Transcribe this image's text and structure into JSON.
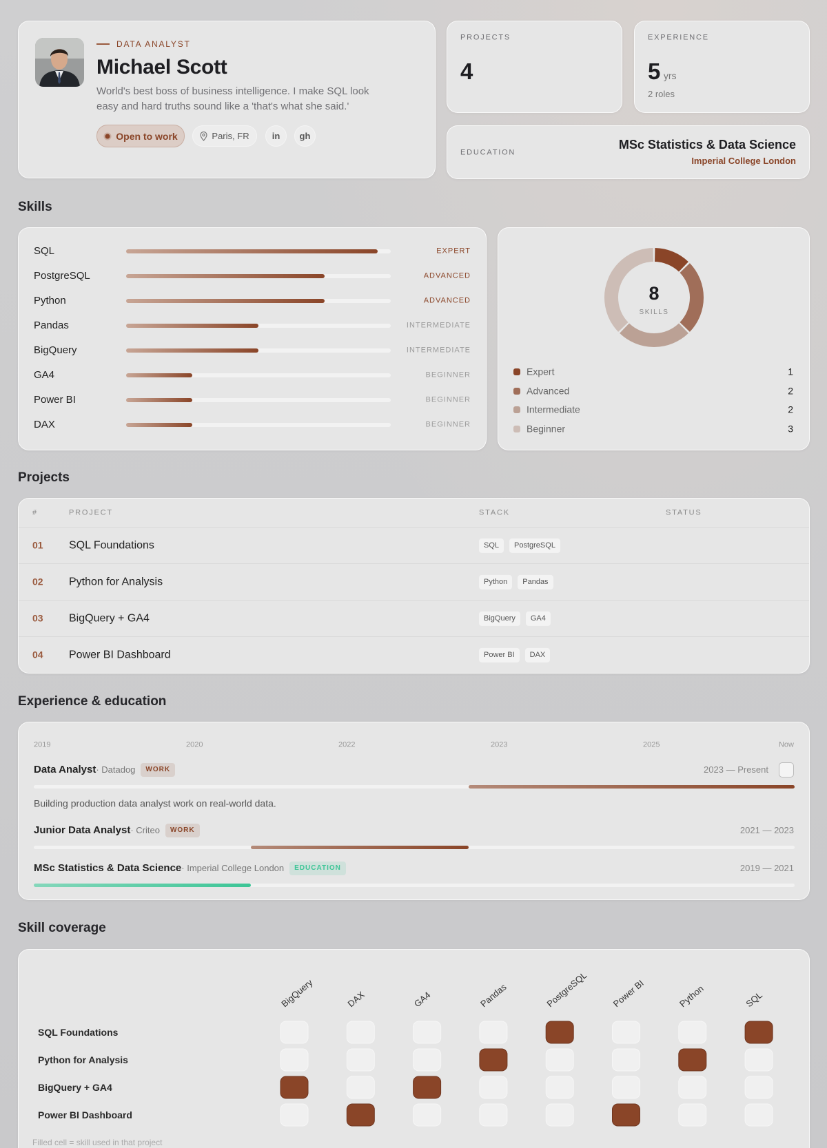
{
  "profile": {
    "role": "DATA ANALYST",
    "name": "Michael Scott",
    "bio": "World's best boss of business intelligence. I make SQL look easy and hard truths sound like a 'that's what she said.'",
    "status": "Open to work",
    "location": "Paris, FR",
    "links": [
      "in",
      "gh"
    ]
  },
  "stats": {
    "projects": {
      "label": "PROJECTS",
      "value": 4
    },
    "experience": {
      "label": "EXPERIENCE",
      "value": 5,
      "unit": "yrs",
      "note": "2 roles"
    },
    "education": {
      "label": "EDUCATION",
      "degree": "MSc Statistics & Data Science",
      "school": "Imperial College London"
    }
  },
  "skills": {
    "title": "Skills",
    "items": [
      {
        "name": "SQL",
        "level": "EXPERT",
        "progress": 95
      },
      {
        "name": "PostgreSQL",
        "level": "ADVANCED",
        "progress": 75
      },
      {
        "name": "Python",
        "level": "ADVANCED",
        "progress": 75
      },
      {
        "name": "Pandas",
        "level": "INTERMEDIATE",
        "progress": 50
      },
      {
        "name": "BigQuery",
        "level": "INTERMEDIATE",
        "progress": 50
      },
      {
        "name": "GA4",
        "level": "BEGINNER",
        "progress": 25
      },
      {
        "name": "Power BI",
        "level": "BEGINNER",
        "progress": 25
      },
      {
        "name": "DAX",
        "level": "BEGINNER",
        "progress": 25
      }
    ],
    "summary": {
      "total": 8,
      "label": "SKILLS",
      "levels": [
        {
          "name": "Expert",
          "count": 1,
          "color": "#8a4528"
        },
        {
          "name": "Advanced",
          "count": 2,
          "color": "#a06e59"
        },
        {
          "name": "Intermediate",
          "count": 2,
          "color": "#bba195"
        },
        {
          "name": "Beginner",
          "count": 3,
          "color": "#cdbdb6"
        }
      ]
    }
  },
  "projects": {
    "title": "Projects",
    "columns": [
      "#",
      "PROJECT",
      "STACK",
      "STATUS"
    ],
    "rows": [
      {
        "id": "01",
        "name": "SQL Foundations",
        "stack": [
          "SQL",
          "PostgreSQL"
        ]
      },
      {
        "id": "02",
        "name": "Python for Analysis",
        "stack": [
          "Python",
          "Pandas"
        ]
      },
      {
        "id": "03",
        "name": "BigQuery + GA4",
        "stack": [
          "BigQuery",
          "GA4"
        ]
      },
      {
        "id": "04",
        "name": "Power BI Dashboard",
        "stack": [
          "Power BI",
          "DAX"
        ]
      }
    ]
  },
  "timeline": {
    "title": "Experience & education",
    "axis": [
      "2019",
      "2020",
      "2022",
      "2023",
      "2025",
      "Now"
    ],
    "range": [
      2019,
      2026
    ],
    "entries": [
      {
        "title": "Data Analyst",
        "org": "Datadog",
        "kind": "WORK",
        "period": "2023 — Present",
        "start": 2023,
        "end": 2026,
        "color": "#8a4528",
        "description": "Building production data analyst work on real-world data."
      },
      {
        "title": "Junior Data Analyst",
        "org": "Criteo",
        "kind": "WORK",
        "period": "2021 — 2023",
        "start": 2021,
        "end": 2023,
        "color": "#8a4528"
      },
      {
        "title": "MSc Statistics & Data Science",
        "org": "Imperial College London",
        "kind": "EDUCATION",
        "period": "2019 — 2021",
        "start": 2019,
        "end": 2021,
        "color": "#3cc596"
      }
    ]
  },
  "coverage": {
    "title": "Skill coverage",
    "skills": [
      "BigQuery",
      "DAX",
      "GA4",
      "Pandas",
      "PostgreSQL",
      "Power BI",
      "Python",
      "SQL"
    ],
    "projects": [
      "SQL Foundations",
      "Python for Analysis",
      "BigQuery + GA4",
      "Power BI Dashboard"
    ],
    "used": [
      [
        0,
        0,
        0,
        0,
        1,
        0,
        0,
        1
      ],
      [
        0,
        0,
        0,
        1,
        0,
        0,
        1,
        0
      ],
      [
        1,
        0,
        1,
        0,
        0,
        0,
        0,
        0
      ],
      [
        0,
        1,
        0,
        0,
        0,
        1,
        0,
        0
      ]
    ],
    "note": "Filled cell = skill used in that project"
  }
}
